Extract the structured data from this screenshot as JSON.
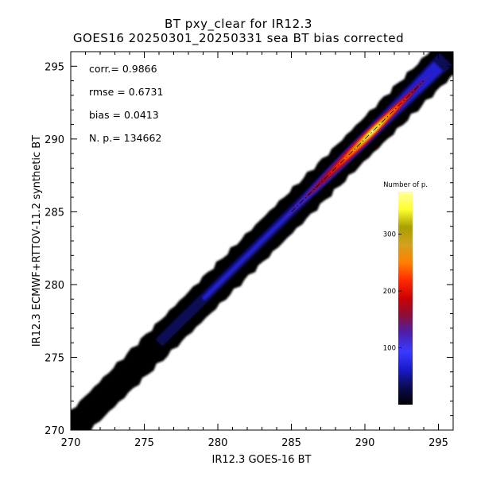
{
  "chart_data": {
    "type": "heatmap",
    "title": "BT pxy_clear for IR12.3",
    "subtitle": "GOES16 20250301_20250331 sea BT bias corrected",
    "xlabel": "IR12.3 GOES-16 BT",
    "ylabel": "IR12.3 ECMWF+RTTOV-11.2 synthetic BT",
    "xlim": [
      270,
      296
    ],
    "ylim": [
      270,
      296
    ],
    "xticks": [
      270,
      275,
      280,
      285,
      290,
      295
    ],
    "yticks": [
      270,
      275,
      280,
      285,
      290,
      295
    ],
    "stats": [
      {
        "label": "corr.",
        "text": "corr.= 0.9866"
      },
      {
        "label": "rmse",
        "text": "rmse = 0.6731"
      },
      {
        "label": "bias",
        "text": "bias = 0.0413"
      },
      {
        "label": "N. p.",
        "text": "N. p.=  134662"
      }
    ],
    "density": {
      "x_range": [
        270,
        296
      ],
      "centerline_slope": 1.0,
      "max_density_x": 290.5,
      "max_density_value": 370,
      "diagonal_line": "dash-dot, black"
    },
    "colorbar": {
      "title": "Number of p.",
      "range": [
        0,
        375
      ],
      "ticks": [
        100,
        200,
        300
      ],
      "colormap": [
        "#000000",
        "#0b0b56",
        "#1a1acc",
        "#3a3aff",
        "#4a1fb0",
        "#8a0f3a",
        "#cc0000",
        "#ff2a00",
        "#ff8000",
        "#d4a020",
        "#a8a000",
        "#ffff30",
        "#ffffa0"
      ]
    }
  }
}
